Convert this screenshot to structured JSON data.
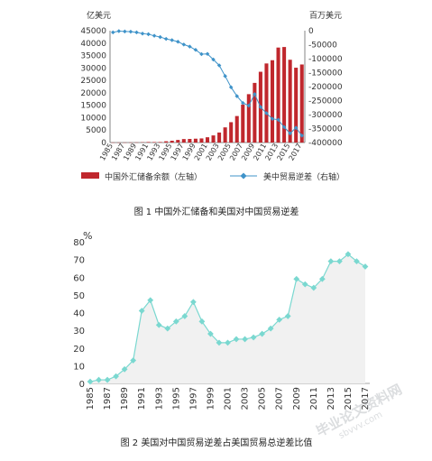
{
  "chart_data": [
    {
      "type": "bar",
      "caption": "图 1    中国外汇储备和美国对中国贸易逆差",
      "left_axis_unit": "亿美元",
      "right_axis_unit": "百万美元",
      "ylim_left": [
        0,
        45000
      ],
      "ylim_right": [
        -400000,
        0
      ],
      "left_ticks": [
        "0",
        "5000",
        "10000",
        "15000",
        "20000",
        "25000",
        "30000",
        "35000",
        "40000",
        "45000"
      ],
      "right_ticks": [
        "0",
        "-50000",
        "-100000",
        "-150000",
        "-200000",
        "-250000",
        "-300000",
        "-350000",
        "-400000"
      ],
      "x_tick_labels": [
        "1985",
        "1987",
        "1989",
        "1991",
        "1993",
        "1995",
        "1997",
        "1999",
        "2001",
        "2003",
        "2005",
        "2007",
        "2009",
        "2011",
        "2013",
        "2015",
        "2017"
      ],
      "legend": [
        "中国外汇储备余额（左轴）",
        "美中贸易逆差（右轴）"
      ],
      "bar_color": "#c0272d",
      "line_color": "#3f93c9",
      "x": [
        1985,
        1986,
        1987,
        1988,
        1989,
        1990,
        1991,
        1992,
        1993,
        1994,
        1995,
        1996,
        1997,
        1998,
        1999,
        2000,
        2001,
        2002,
        2003,
        2004,
        2005,
        2006,
        2007,
        2008,
        2009,
        2010,
        2011,
        2012,
        2013,
        2014,
        2015,
        2016,
        2017
      ],
      "series": [
        {
          "name": "中国外汇储备余额（左轴）",
          "axis": "left",
          "values": [
            26,
            21,
            29,
            34,
            55,
            111,
            217,
            194,
            212,
            516,
            736,
            1050,
            1399,
            1450,
            1547,
            1656,
            2122,
            2864,
            4033,
            6099,
            8189,
            10663,
            15282,
            19460,
            23992,
            28473,
            31811,
            33116,
            38213,
            38430,
            33304,
            30105,
            31399
          ]
        },
        {
          "name": "美中贸易逆差（右轴）",
          "axis": "right",
          "values": [
            -6000,
            -1700,
            -2800,
            -3500,
            -6200,
            -10400,
            -12700,
            -18300,
            -22800,
            -29500,
            -33800,
            -39500,
            -49700,
            -56900,
            -68700,
            -83800,
            -83100,
            -103100,
            -124100,
            -162300,
            -202300,
            -234100,
            -258500,
            -268000,
            -226900,
            -273100,
            -295300,
            -315100,
            -318700,
            -344800,
            -367300,
            -347000,
            -375200
          ]
        }
      ]
    },
    {
      "type": "area",
      "caption": "图 2  美国对中国贸易逆差占美国贸易总逆差比值",
      "y_unit": "%",
      "ylim": [
        0,
        80
      ],
      "y_ticks": [
        "0",
        "10",
        "20",
        "30",
        "40",
        "50",
        "60",
        "70",
        "80"
      ],
      "x_tick_labels": [
        "1985",
        "1987",
        "1989",
        "1991",
        "1993",
        "1995",
        "1997",
        "1999",
        "2001",
        "2003",
        "2005",
        "2007",
        "2009",
        "2011",
        "2013",
        "2015",
        "2017"
      ],
      "line_color": "#7ad8d0",
      "area_color": "#f1f1f1",
      "x": [
        1985,
        1986,
        1987,
        1988,
        1989,
        1990,
        1991,
        1992,
        1993,
        1994,
        1995,
        1996,
        1997,
        1998,
        1999,
        2000,
        2001,
        2002,
        2003,
        2004,
        2005,
        2006,
        2007,
        2008,
        2009,
        2010,
        2011,
        2012,
        2013,
        2014,
        2015,
        2016,
        2017
      ],
      "values": [
        1,
        2,
        2,
        4,
        8,
        13,
        41,
        47,
        33,
        31,
        35,
        38,
        46,
        35,
        28,
        23,
        23,
        25,
        25,
        26,
        28,
        31,
        36,
        38,
        59,
        56,
        54,
        59,
        69,
        69,
        73,
        69,
        66
      ]
    }
  ],
  "watermark": {
    "line1": "毕业论文资料网",
    "line2": "sbvvv.com"
  }
}
